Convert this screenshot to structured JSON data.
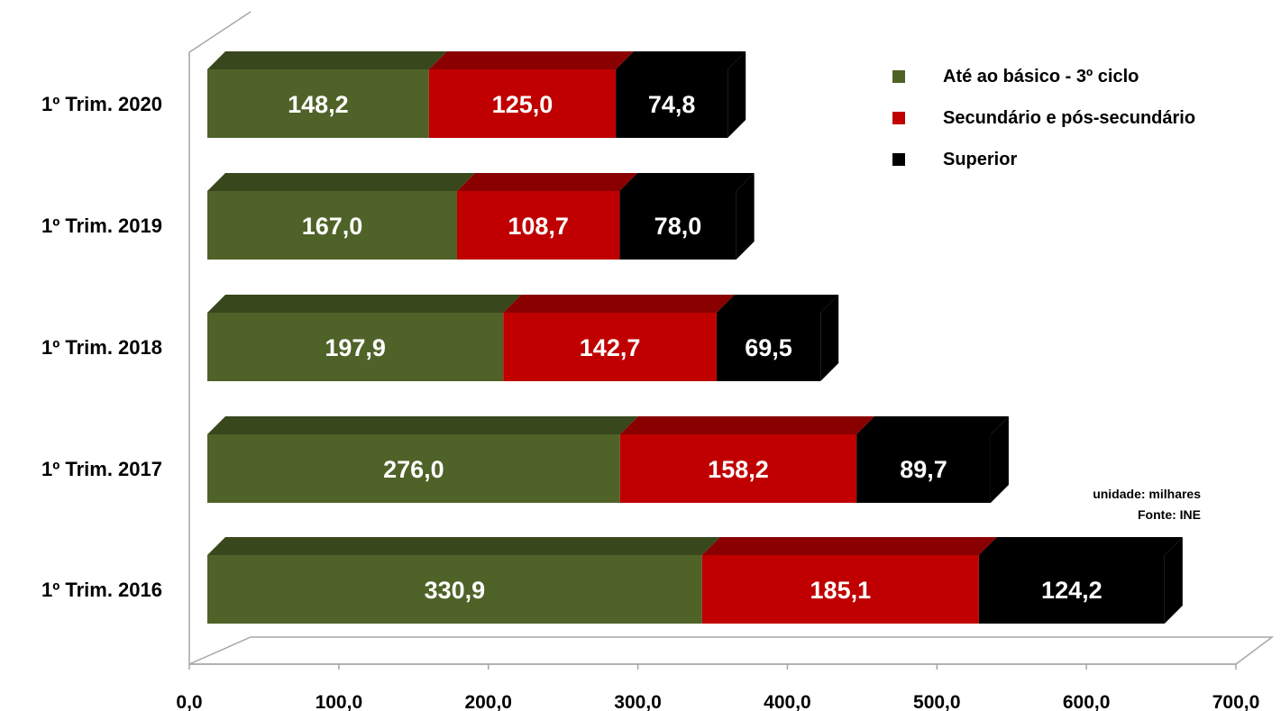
{
  "chart_data": {
    "type": "bar",
    "orientation": "horizontal",
    "stacked": true,
    "categories": [
      "1º Trim. 2020",
      "1º Trim. 2019",
      "1º Trim. 2018",
      "1º Trim. 2017",
      "1º Trim. 2016"
    ],
    "series": [
      {
        "name": "Até ao básico - 3º ciclo",
        "color": "#4f6228",
        "values": [
          148.2,
          167.0,
          197.9,
          276.0,
          330.9
        ],
        "labels": [
          "148,2",
          "167,0",
          "197,9",
          "276,0",
          "330,9"
        ]
      },
      {
        "name": "Secundário e pós-secundário",
        "color": "#c00000",
        "values": [
          125.0,
          108.7,
          142.7,
          158.2,
          185.1
        ],
        "labels": [
          "125,0",
          "108,7",
          "142,7",
          "158,2",
          "185,1"
        ]
      },
      {
        "name": "Superior",
        "color": "#000000",
        "values": [
          74.8,
          78.0,
          69.5,
          89.7,
          124.2
        ],
        "labels": [
          "74,8",
          "78,0",
          "69,5",
          "89,7",
          "124,2"
        ]
      }
    ],
    "xlim": [
      0,
      700
    ],
    "xticks": [
      "0,0",
      "100,0",
      "200,0",
      "300,0",
      "400,0",
      "500,0",
      "600,0",
      "700,0"
    ],
    "grid": false,
    "legend_position": "top-right"
  },
  "notes": {
    "unit": "unidade: milhares",
    "source": "Fonte: INE"
  }
}
